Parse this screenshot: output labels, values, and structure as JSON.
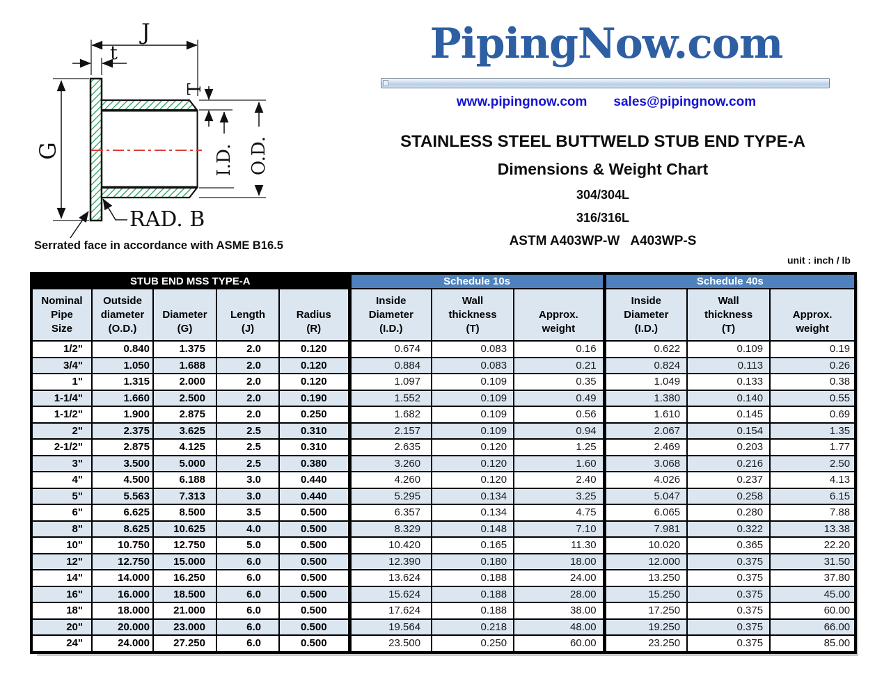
{
  "header": {
    "logo": "PipingNow.com",
    "website": "www.pipingnow.com",
    "email": "sales@pipingnow.com",
    "title": "STAINLESS STEEL BUTTWELD STUB END TYPE-A",
    "subtitle": "Dimensions & Weight Chart",
    "grade_1": "304/304L",
    "grade_2": "316/316L",
    "astm": "ASTM A403WP-W   A403WP-S",
    "unit_note": "unit : inch / lb"
  },
  "diagram": {
    "labels": {
      "j": "J",
      "t": "t",
      "T": "T",
      "g": "G",
      "id": "I.D.",
      "od": "O.D.",
      "rad_b": "RAD. B"
    },
    "note": "Serrated face in accordance with ASME B16.5"
  },
  "table": {
    "group_headers": [
      {
        "label": "STUB END MSS TYPE-A",
        "colspan": 5,
        "bg": "#000000"
      },
      {
        "label": "Schedule 10s",
        "colspan": 3,
        "bg": "#4f81bd"
      },
      {
        "label": "Schedule 40s",
        "colspan": 3,
        "bg": "#4f81bd"
      }
    ],
    "columns": [
      [
        "Nominal",
        "Pipe",
        "Size"
      ],
      [
        "Outside",
        "diameter",
        "(O.D.)"
      ],
      [
        "",
        "Diameter",
        "(G)"
      ],
      [
        "",
        "Length",
        "(J)"
      ],
      [
        "",
        "Radius",
        "(R)"
      ],
      [
        "Inside",
        "Diameter",
        "(I.D.)"
      ],
      [
        "Wall",
        "thickness",
        "(T)"
      ],
      [
        "",
        "Approx.",
        "weight"
      ],
      [
        "Inside",
        "Diameter",
        "(I.D.)"
      ],
      [
        "Wall",
        "thickness",
        "(T)"
      ],
      [
        "",
        "Approx.",
        "weight"
      ]
    ],
    "rows": [
      [
        "1/2\"",
        "0.840",
        "1.375",
        "2.0",
        "0.120",
        "0.674",
        "0.083",
        "0.16",
        "0.622",
        "0.109",
        "0.19"
      ],
      [
        "3/4\"",
        "1.050",
        "1.688",
        "2.0",
        "0.120",
        "0.884",
        "0.083",
        "0.21",
        "0.824",
        "0.113",
        "0.26"
      ],
      [
        "1\"",
        "1.315",
        "2.000",
        "2.0",
        "0.120",
        "1.097",
        "0.109",
        "0.35",
        "1.049",
        "0.133",
        "0.38"
      ],
      [
        "1-1/4\"",
        "1.660",
        "2.500",
        "2.0",
        "0.190",
        "1.552",
        "0.109",
        "0.49",
        "1.380",
        "0.140",
        "0.55"
      ],
      [
        "1-1/2\"",
        "1.900",
        "2.875",
        "2.0",
        "0.250",
        "1.682",
        "0.109",
        "0.56",
        "1.610",
        "0.145",
        "0.69"
      ],
      [
        "2\"",
        "2.375",
        "3.625",
        "2.5",
        "0.310",
        "2.157",
        "0.109",
        "0.94",
        "2.067",
        "0.154",
        "1.35"
      ],
      [
        "2-1/2\"",
        "2.875",
        "4.125",
        "2.5",
        "0.310",
        "2.635",
        "0.120",
        "1.25",
        "2.469",
        "0.203",
        "1.77"
      ],
      [
        "3\"",
        "3.500",
        "5.000",
        "2.5",
        "0.380",
        "3.260",
        "0.120",
        "1.60",
        "3.068",
        "0.216",
        "2.50"
      ],
      [
        "4\"",
        "4.500",
        "6.188",
        "3.0",
        "0.440",
        "4.260",
        "0.120",
        "2.40",
        "4.026",
        "0.237",
        "4.13"
      ],
      [
        "5\"",
        "5.563",
        "7.313",
        "3.0",
        "0.440",
        "5.295",
        "0.134",
        "3.25",
        "5.047",
        "0.258",
        "6.15"
      ],
      [
        "6\"",
        "6.625",
        "8.500",
        "3.5",
        "0.500",
        "6.357",
        "0.134",
        "4.75",
        "6.065",
        "0.280",
        "7.88"
      ],
      [
        "8\"",
        "8.625",
        "10.625",
        "4.0",
        "0.500",
        "8.329",
        "0.148",
        "7.10",
        "7.981",
        "0.322",
        "13.38"
      ],
      [
        "10\"",
        "10.750",
        "12.750",
        "5.0",
        "0.500",
        "10.420",
        "0.165",
        "11.30",
        "10.020",
        "0.365",
        "22.20"
      ],
      [
        "12\"",
        "12.750",
        "15.000",
        "6.0",
        "0.500",
        "12.390",
        "0.180",
        "18.00",
        "12.000",
        "0.375",
        "31.50"
      ],
      [
        "14\"",
        "14.000",
        "16.250",
        "6.0",
        "0.500",
        "13.624",
        "0.188",
        "24.00",
        "13.250",
        "0.375",
        "37.80"
      ],
      [
        "16\"",
        "16.000",
        "18.500",
        "6.0",
        "0.500",
        "15.624",
        "0.188",
        "28.00",
        "15.250",
        "0.375",
        "45.00"
      ],
      [
        "18\"",
        "18.000",
        "21.000",
        "6.0",
        "0.500",
        "17.624",
        "0.188",
        "38.00",
        "17.250",
        "0.375",
        "60.00"
      ],
      [
        "20\"",
        "20.000",
        "23.000",
        "6.0",
        "0.500",
        "19.564",
        "0.218",
        "48.00",
        "19.250",
        "0.375",
        "66.00"
      ],
      [
        "24\"",
        "24.000",
        "27.250",
        "6.0",
        "0.500",
        "23.500",
        "0.250",
        "60.00",
        "23.250",
        "0.375",
        "85.00"
      ]
    ]
  },
  "colors": {
    "band_black": "#000000",
    "band_blue": "#4f81bd",
    "row_stripe": "#dce6f1",
    "logo_blue": "#2e5fa3",
    "link_blue": "#1512d0",
    "hatch_green": "#1fa05a",
    "centerline_red": "#e03c3c"
  }
}
